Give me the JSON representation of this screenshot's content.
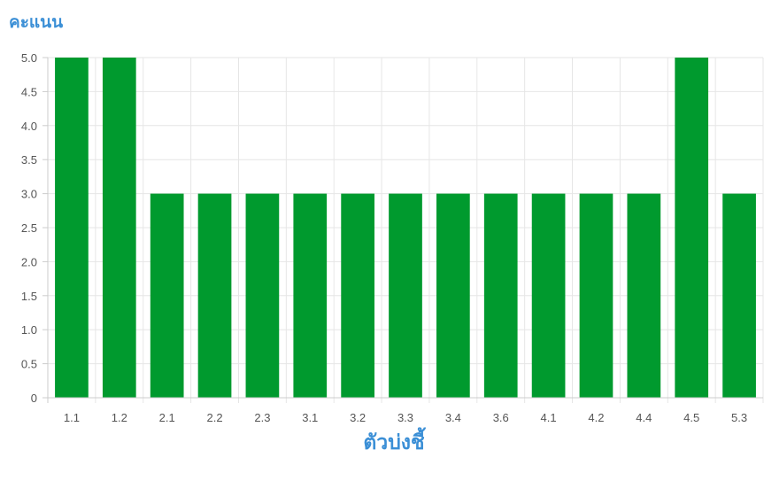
{
  "chart_data": {
    "type": "bar",
    "categories": [
      "1.1",
      "1.2",
      "2.1",
      "2.2",
      "2.3",
      "3.1",
      "3.2",
      "3.3",
      "3.4",
      "3.6",
      "4.1",
      "4.2",
      "4.4",
      "4.5",
      "5.3"
    ],
    "values": [
      5,
      5,
      3,
      3,
      3,
      3,
      3,
      3,
      3,
      3,
      3,
      3,
      3,
      5,
      3
    ],
    "ylabel": "คะแนน",
    "xlabel": "ตัวบ่งชี้",
    "ylim": [
      0,
      5
    ],
    "yticks": [
      "0",
      "0.5",
      "1.0",
      "1.5",
      "2.0",
      "2.5",
      "3.0",
      "3.5",
      "4.0",
      "4.5",
      "5.0"
    ],
    "grid": true,
    "colors": {
      "bar": "#009a2e",
      "axis_title": "#3b8fd6",
      "grid": "#e6e6e6",
      "axis": "#cccccc"
    }
  }
}
